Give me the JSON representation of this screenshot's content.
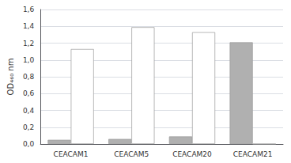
{
  "chart_data": {
    "type": "bar",
    "categories": [
      "CEACAM1",
      "CEACAM5",
      "CEACAM20",
      "CEACAM21"
    ],
    "series": [
      {
        "color": "#b0b0b0",
        "values": [
          0.05,
          0.06,
          0.09,
          1.21
        ]
      },
      {
        "color": "#ffffff",
        "values": [
          1.13,
          1.39,
          1.33,
          0.0
        ]
      }
    ],
    "ylabel": "OD₄₆₀ nm",
    "ylim": [
      0,
      1.6
    ],
    "yticks": [
      {
        "value": 0.0,
        "label": "0,0"
      },
      {
        "value": 0.2,
        "label": "0,2"
      },
      {
        "value": 0.4,
        "label": "0,4"
      },
      {
        "value": 0.6,
        "label": "0,6"
      },
      {
        "value": 0.8,
        "label": "0,8"
      },
      {
        "value": 1.0,
        "label": "1,0"
      },
      {
        "value": 1.2,
        "label": "1,2"
      },
      {
        "value": 1.4,
        "label": "1,4"
      },
      {
        "value": 1.6,
        "label": "1,6"
      }
    ],
    "grid": true
  }
}
